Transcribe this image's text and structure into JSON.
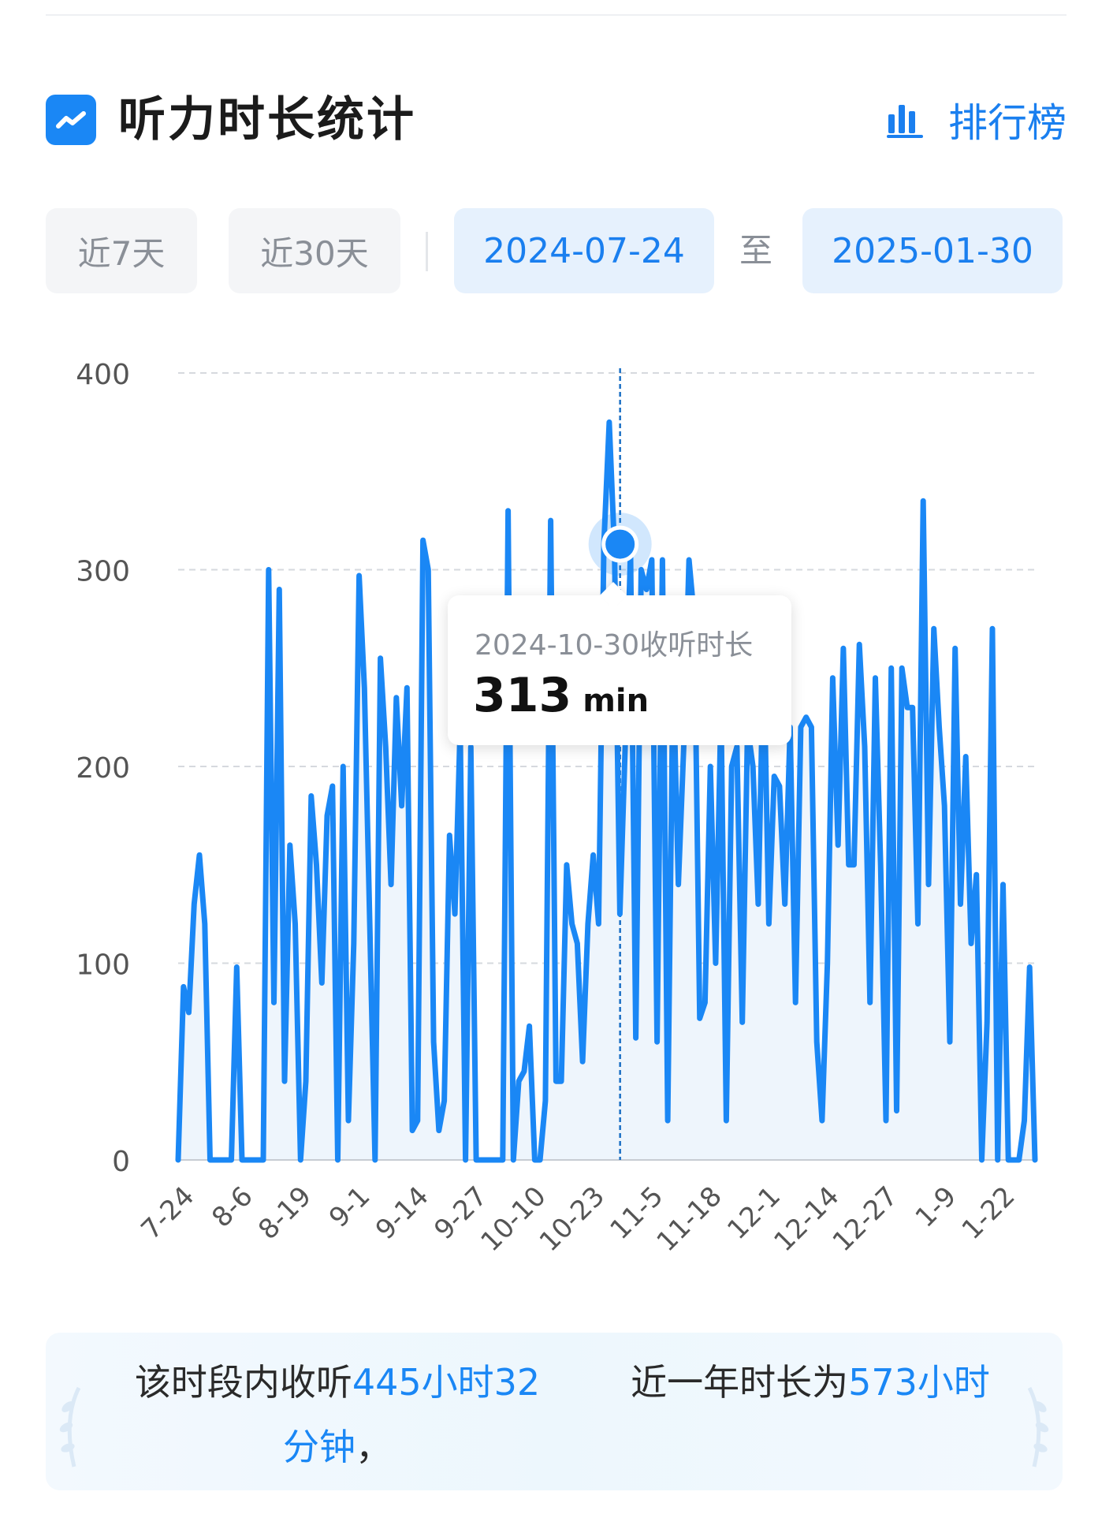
{
  "header": {
    "title": "听力时长统计",
    "title_icon": "trend-chart-icon",
    "ranking_label": "排行榜",
    "ranking_icon": "bar-chart-icon"
  },
  "filters": {
    "last7_label": "近7天",
    "last30_label": "近30天",
    "start_date": "2024-07-24",
    "to_label": "至",
    "end_date": "2025-01-30"
  },
  "tooltip": {
    "title": "2024-10-30收听时长",
    "value": "313",
    "unit": "min"
  },
  "summary": {
    "part1_prefix": "该时段内收听",
    "part1_value": "445小时32分钟",
    "part1_suffix": "，",
    "part2_prefix": "近一年时长为",
    "part2_value": "573小时"
  },
  "colors": {
    "accent": "#1a87f5",
    "fill": "#eef5fc",
    "grid": "#d6d9de",
    "chip_grey": "#f4f5f7",
    "chip_blue": "#e6f1fd"
  },
  "chart_data": {
    "type": "line",
    "title": "",
    "xlabel": "",
    "ylabel": "",
    "ylim": [
      0,
      400
    ],
    "y_ticks": [
      "0",
      "100",
      "200",
      "300",
      "400"
    ],
    "x_start": "2024-07-24",
    "x_end": "2025-01-30",
    "x_ticks": [
      {
        "date": "2024-07-24",
        "label": "7-24"
      },
      {
        "date": "2024-08-06",
        "label": "8-6"
      },
      {
        "date": "2024-08-19",
        "label": "8-19"
      },
      {
        "date": "2024-09-01",
        "label": "9-1"
      },
      {
        "date": "2024-09-14",
        "label": "9-14"
      },
      {
        "date": "2024-09-27",
        "label": "9-27"
      },
      {
        "date": "2024-10-10",
        "label": "10-10"
      },
      {
        "date": "2024-10-23",
        "label": "10-23"
      },
      {
        "date": "2024-11-05",
        "label": "11-5"
      },
      {
        "date": "2024-11-18",
        "label": "11-18"
      },
      {
        "date": "2024-12-01",
        "label": "12-1"
      },
      {
        "date": "2024-12-14",
        "label": "12-14"
      },
      {
        "date": "2024-12-27",
        "label": "12-27"
      },
      {
        "date": "2025-01-09",
        "label": "1-9"
      },
      {
        "date": "2025-01-22",
        "label": "1-22"
      }
    ],
    "grid": true,
    "highlight": {
      "date": "2024-10-30",
      "value": 313
    },
    "values": [
      0,
      88,
      75,
      130,
      155,
      120,
      0,
      0,
      0,
      0,
      0,
      98,
      0,
      0,
      0,
      0,
      0,
      300,
      80,
      290,
      40,
      160,
      120,
      0,
      40,
      185,
      150,
      90,
      175,
      190,
      0,
      200,
      20,
      110,
      297,
      240,
      120,
      0,
      255,
      210,
      140,
      235,
      180,
      240,
      15,
      20,
      315,
      300,
      60,
      15,
      30,
      165,
      125,
      220,
      0,
      210,
      0,
      0,
      0,
      0,
      0,
      0,
      330,
      0,
      40,
      45,
      68,
      0,
      0,
      30,
      325,
      40,
      40,
      150,
      120,
      110,
      50,
      120,
      155,
      120,
      313,
      375,
      310,
      125,
      210,
      310,
      62,
      300,
      290,
      305,
      60,
      305,
      20,
      250,
      140,
      210,
      305,
      275,
      72,
      80,
      200,
      100,
      230,
      20,
      200,
      210,
      70,
      220,
      200,
      130,
      260,
      120,
      195,
      190,
      130,
      220,
      80,
      220,
      225,
      220,
      60,
      20,
      100,
      245,
      160,
      260,
      150,
      150,
      262,
      210,
      80,
      245,
      150,
      20,
      250,
      25,
      250,
      230,
      230,
      120,
      335,
      140,
      270,
      220,
      180,
      60,
      260,
      130,
      205,
      110,
      145,
      0,
      70,
      270,
      0,
      140,
      0,
      0,
      0,
      20,
      98,
      0
    ]
  }
}
